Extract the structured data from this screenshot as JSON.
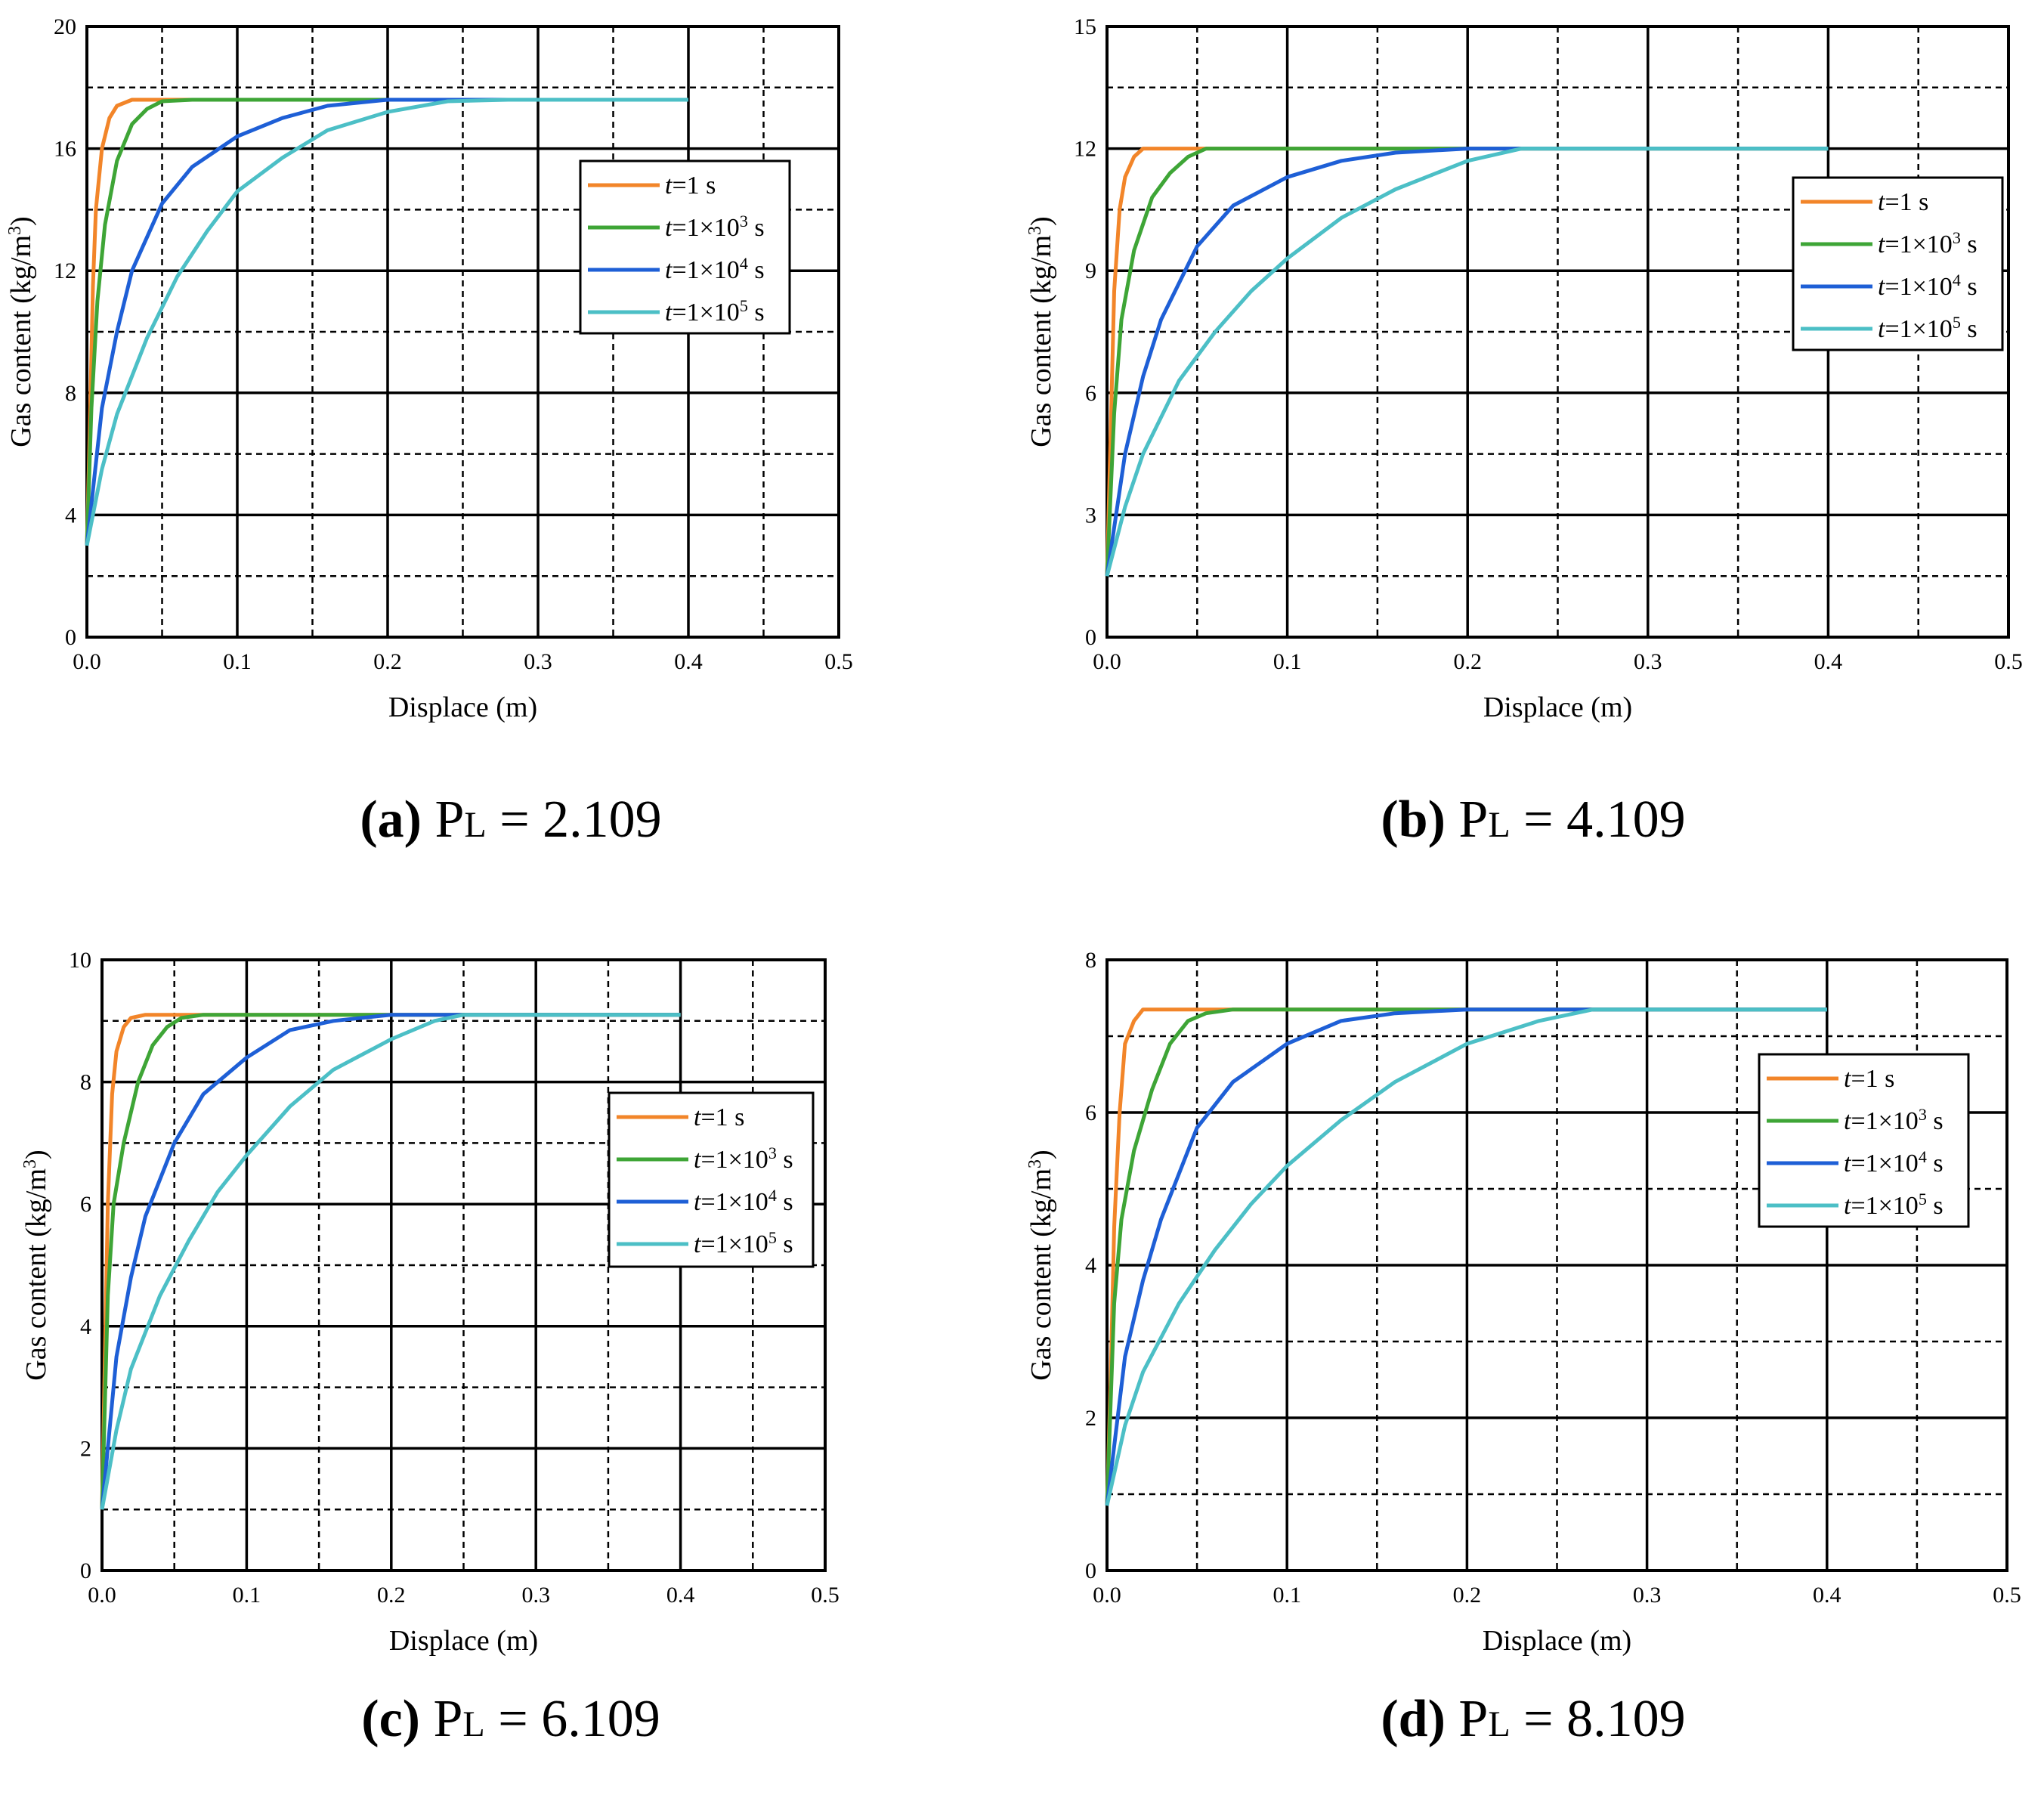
{
  "colors": {
    "t1": "#F28529",
    "t1e3": "#3EA536",
    "t1e4": "#1E5FD6",
    "t1e5": "#4CBFC6"
  },
  "chart_data": [
    {
      "type": "line",
      "id": "a",
      "caption": {
        "label": "(a)",
        "pl_prefix": "P",
        "pl_sub": "L",
        "pl_value": " = 2.109"
      },
      "xlabel": "Displace (m)",
      "ylabel": "Gas content (kg/m3)",
      "xlim": [
        0,
        0.5
      ],
      "ylim": [
        0,
        20
      ],
      "xticks": [
        "0.0",
        "0.1",
        "0.2",
        "0.3",
        "0.4",
        "0.5"
      ],
      "yticks": [
        "0",
        "4",
        "8",
        "12",
        "16",
        "20"
      ],
      "ytick_values": [
        0,
        4,
        8,
        12,
        16,
        20
      ],
      "legend_position": "upper-right",
      "series": [
        {
          "name": "t=1 s",
          "color_key": "t1",
          "end": 0.4,
          "x": [
            0,
            0.002,
            0.004,
            0.006,
            0.01,
            0.015,
            0.02,
            0.03,
            0.05
          ],
          "y": [
            3.0,
            7.0,
            11.5,
            14.0,
            16.0,
            17.0,
            17.4,
            17.6,
            17.6
          ]
        },
        {
          "name": "t=1×10³ s",
          "color_key": "t1e3",
          "end": 0.4,
          "x": [
            0,
            0.003,
            0.007,
            0.012,
            0.02,
            0.03,
            0.04,
            0.05,
            0.07
          ],
          "y": [
            3.0,
            7.5,
            11.0,
            13.5,
            15.6,
            16.8,
            17.3,
            17.55,
            17.6
          ]
        },
        {
          "name": "t=1×10⁴ s",
          "color_key": "t1e4",
          "end": 0.4,
          "x": [
            0,
            0.01,
            0.02,
            0.03,
            0.05,
            0.07,
            0.1,
            0.13,
            0.16,
            0.2,
            0.24
          ],
          "y": [
            3.0,
            7.5,
            10.0,
            12.0,
            14.2,
            15.4,
            16.4,
            17.0,
            17.4,
            17.6,
            17.6
          ]
        },
        {
          "name": "t=1×10⁵ s",
          "color_key": "t1e5",
          "end": 0.4,
          "x": [
            0,
            0.01,
            0.02,
            0.04,
            0.06,
            0.08,
            0.1,
            0.13,
            0.16,
            0.2,
            0.24,
            0.28
          ],
          "y": [
            3.0,
            5.5,
            7.3,
            9.8,
            11.8,
            13.3,
            14.6,
            15.7,
            16.6,
            17.2,
            17.55,
            17.6
          ]
        }
      ],
      "legend_labels": [
        {
          "pre": "=1 s",
          "exp": "",
          "post": ""
        },
        {
          "pre": "=1×10",
          "exp": "3",
          "post": " s"
        },
        {
          "pre": "=1×10",
          "exp": "4",
          "post": " s"
        },
        {
          "pre": "=1×10",
          "exp": "5",
          "post": " s"
        }
      ]
    },
    {
      "type": "line",
      "id": "b",
      "caption": {
        "label": "(b)",
        "pl_prefix": "P",
        "pl_sub": "L",
        "pl_value": " = 4.109"
      },
      "xlabel": "Displace (m)",
      "ylabel": "Gas content (kg/m3)",
      "xlim": [
        0,
        0.5
      ],
      "ylim": [
        0,
        15
      ],
      "xticks": [
        "0.0",
        "0.1",
        "0.2",
        "0.3",
        "0.4",
        "0.5"
      ],
      "yticks": [
        "0",
        "3",
        "6",
        "9",
        "12",
        "15"
      ],
      "ytick_values": [
        0,
        3,
        6,
        9,
        12,
        15
      ],
      "legend_position": "right",
      "series": [
        {
          "name": "t=1 s",
          "color_key": "t1",
          "end": 0.4,
          "x": [
            0,
            0.002,
            0.004,
            0.007,
            0.01,
            0.015,
            0.02,
            0.03
          ],
          "y": [
            1.5,
            5.0,
            8.5,
            10.5,
            11.3,
            11.8,
            12.0,
            12.0
          ]
        },
        {
          "name": "t=1×10³ s",
          "color_key": "t1e3",
          "end": 0.4,
          "x": [
            0,
            0.004,
            0.008,
            0.015,
            0.025,
            0.035,
            0.045,
            0.055,
            0.07
          ],
          "y": [
            1.5,
            5.5,
            7.8,
            9.5,
            10.8,
            11.4,
            11.8,
            12.0,
            12.0
          ]
        },
        {
          "name": "t=1×10⁴ s",
          "color_key": "t1e4",
          "end": 0.4,
          "x": [
            0,
            0.01,
            0.02,
            0.03,
            0.05,
            0.07,
            0.1,
            0.13,
            0.16,
            0.2
          ],
          "y": [
            1.5,
            4.5,
            6.4,
            7.8,
            9.6,
            10.6,
            11.3,
            11.7,
            11.9,
            12.0
          ]
        },
        {
          "name": "t=1×10⁵ s",
          "color_key": "t1e5",
          "end": 0.4,
          "x": [
            0,
            0.01,
            0.02,
            0.04,
            0.06,
            0.08,
            0.1,
            0.13,
            0.16,
            0.2,
            0.23
          ],
          "y": [
            1.5,
            3.2,
            4.5,
            6.3,
            7.5,
            8.5,
            9.3,
            10.3,
            11.0,
            11.7,
            12.0
          ]
        }
      ],
      "legend_labels": [
        {
          "pre": "=1 s",
          "exp": "",
          "post": ""
        },
        {
          "pre": "=1×10",
          "exp": "3",
          "post": " s"
        },
        {
          "pre": "=1×10",
          "exp": "4",
          "post": " s"
        },
        {
          "pre": "=1×10",
          "exp": "5",
          "post": " s"
        }
      ]
    },
    {
      "type": "line",
      "id": "c",
      "caption": {
        "label": "(c)",
        "pl_prefix": "P",
        "pl_sub": "L",
        "pl_value": " = 6.109"
      },
      "xlabel": "Displace (m)",
      "ylabel": "Gas content (kg/m3)",
      "xlim": [
        0,
        0.5
      ],
      "ylim": [
        0,
        10
      ],
      "xticks": [
        "0.0",
        "0.1",
        "0.2",
        "0.3",
        "0.4",
        "0.5"
      ],
      "yticks": [
        "0",
        "2",
        "4",
        "6",
        "8",
        "10"
      ],
      "ytick_values": [
        0,
        2,
        4,
        6,
        8,
        10
      ],
      "legend_position": "right",
      "series": [
        {
          "name": "t=1 s",
          "color_key": "t1",
          "end": 0.4,
          "x": [
            0,
            0.002,
            0.004,
            0.007,
            0.01,
            0.015,
            0.02,
            0.03
          ],
          "y": [
            1.0,
            3.5,
            6.0,
            7.8,
            8.5,
            8.9,
            9.05,
            9.1
          ]
        },
        {
          "name": "t=1×10³ s",
          "color_key": "t1e3",
          "end": 0.4,
          "x": [
            0,
            0.004,
            0.008,
            0.015,
            0.025,
            0.035,
            0.045,
            0.055,
            0.07
          ],
          "y": [
            1.0,
            4.5,
            6.0,
            7.0,
            8.0,
            8.6,
            8.9,
            9.05,
            9.1
          ]
        },
        {
          "name": "t=1×10⁴ s",
          "color_key": "t1e4",
          "end": 0.4,
          "x": [
            0,
            0.01,
            0.02,
            0.03,
            0.05,
            0.07,
            0.1,
            0.13,
            0.16,
            0.2,
            0.24
          ],
          "y": [
            1.0,
            3.5,
            4.8,
            5.8,
            7.0,
            7.8,
            8.4,
            8.85,
            9.0,
            9.1,
            9.1
          ]
        },
        {
          "name": "t=1×10⁵ s",
          "color_key": "t1e5",
          "end": 0.4,
          "x": [
            0,
            0.01,
            0.02,
            0.04,
            0.06,
            0.08,
            0.1,
            0.13,
            0.16,
            0.2,
            0.23,
            0.25
          ],
          "y": [
            1.0,
            2.3,
            3.3,
            4.5,
            5.4,
            6.2,
            6.8,
            7.6,
            8.2,
            8.7,
            9.0,
            9.1
          ]
        }
      ],
      "legend_labels": [
        {
          "pre": "=1 s",
          "exp": "",
          "post": ""
        },
        {
          "pre": "=1×10",
          "exp": "3",
          "post": " s"
        },
        {
          "pre": "=1×10",
          "exp": "4",
          "post": " s"
        },
        {
          "pre": "=1×10",
          "exp": "5",
          "post": " s"
        }
      ]
    },
    {
      "type": "line",
      "id": "d",
      "caption": {
        "label": "(d)",
        "pl_prefix": "P",
        "pl_sub": "L",
        "pl_value": " = 8.109"
      },
      "xlabel": "Displace (m)",
      "ylabel": "Gas content (kg/m3)",
      "xlim": [
        0,
        0.5
      ],
      "ylim": [
        0,
        8
      ],
      "xticks": [
        "0.0",
        "0.1",
        "0.2",
        "0.3",
        "0.4",
        "0.5"
      ],
      "yticks": [
        "0",
        "2",
        "4",
        "6",
        "8"
      ],
      "ytick_values": [
        0,
        2,
        4,
        6,
        8
      ],
      "legend_position": "upper-right",
      "series": [
        {
          "name": "t=1 s",
          "color_key": "t1",
          "end": 0.4,
          "x": [
            0,
            0.002,
            0.004,
            0.007,
            0.01,
            0.015,
            0.02,
            0.03
          ],
          "y": [
            0.85,
            2.5,
            4.5,
            6.0,
            6.9,
            7.2,
            7.35,
            7.35
          ]
        },
        {
          "name": "t=1×10³ s",
          "color_key": "t1e3",
          "end": 0.4,
          "x": [
            0,
            0.004,
            0.008,
            0.015,
            0.025,
            0.035,
            0.045,
            0.055,
            0.07
          ],
          "y": [
            0.85,
            3.5,
            4.6,
            5.5,
            6.3,
            6.9,
            7.2,
            7.3,
            7.35
          ]
        },
        {
          "name": "t=1×10⁴ s",
          "color_key": "t1e4",
          "end": 0.4,
          "x": [
            0,
            0.01,
            0.02,
            0.03,
            0.05,
            0.07,
            0.1,
            0.13,
            0.16,
            0.2,
            0.24
          ],
          "y": [
            0.85,
            2.8,
            3.8,
            4.6,
            5.8,
            6.4,
            6.9,
            7.2,
            7.3,
            7.35,
            7.35
          ]
        },
        {
          "name": "t=1×10⁵ s",
          "color_key": "t1e5",
          "end": 0.4,
          "x": [
            0,
            0.01,
            0.02,
            0.04,
            0.06,
            0.08,
            0.1,
            0.13,
            0.16,
            0.2,
            0.24,
            0.27
          ],
          "y": [
            0.85,
            1.9,
            2.6,
            3.5,
            4.2,
            4.8,
            5.3,
            5.9,
            6.4,
            6.9,
            7.2,
            7.35
          ]
        }
      ],
      "legend_labels": [
        {
          "pre": "=1 s",
          "exp": "",
          "post": ""
        },
        {
          "pre": "=1×10",
          "exp": "3",
          "post": " s"
        },
        {
          "pre": "=1×10",
          "exp": "4",
          "post": " s"
        },
        {
          "pre": "=1×10",
          "exp": "5",
          "post": " s"
        }
      ]
    }
  ],
  "legend_var": "t"
}
